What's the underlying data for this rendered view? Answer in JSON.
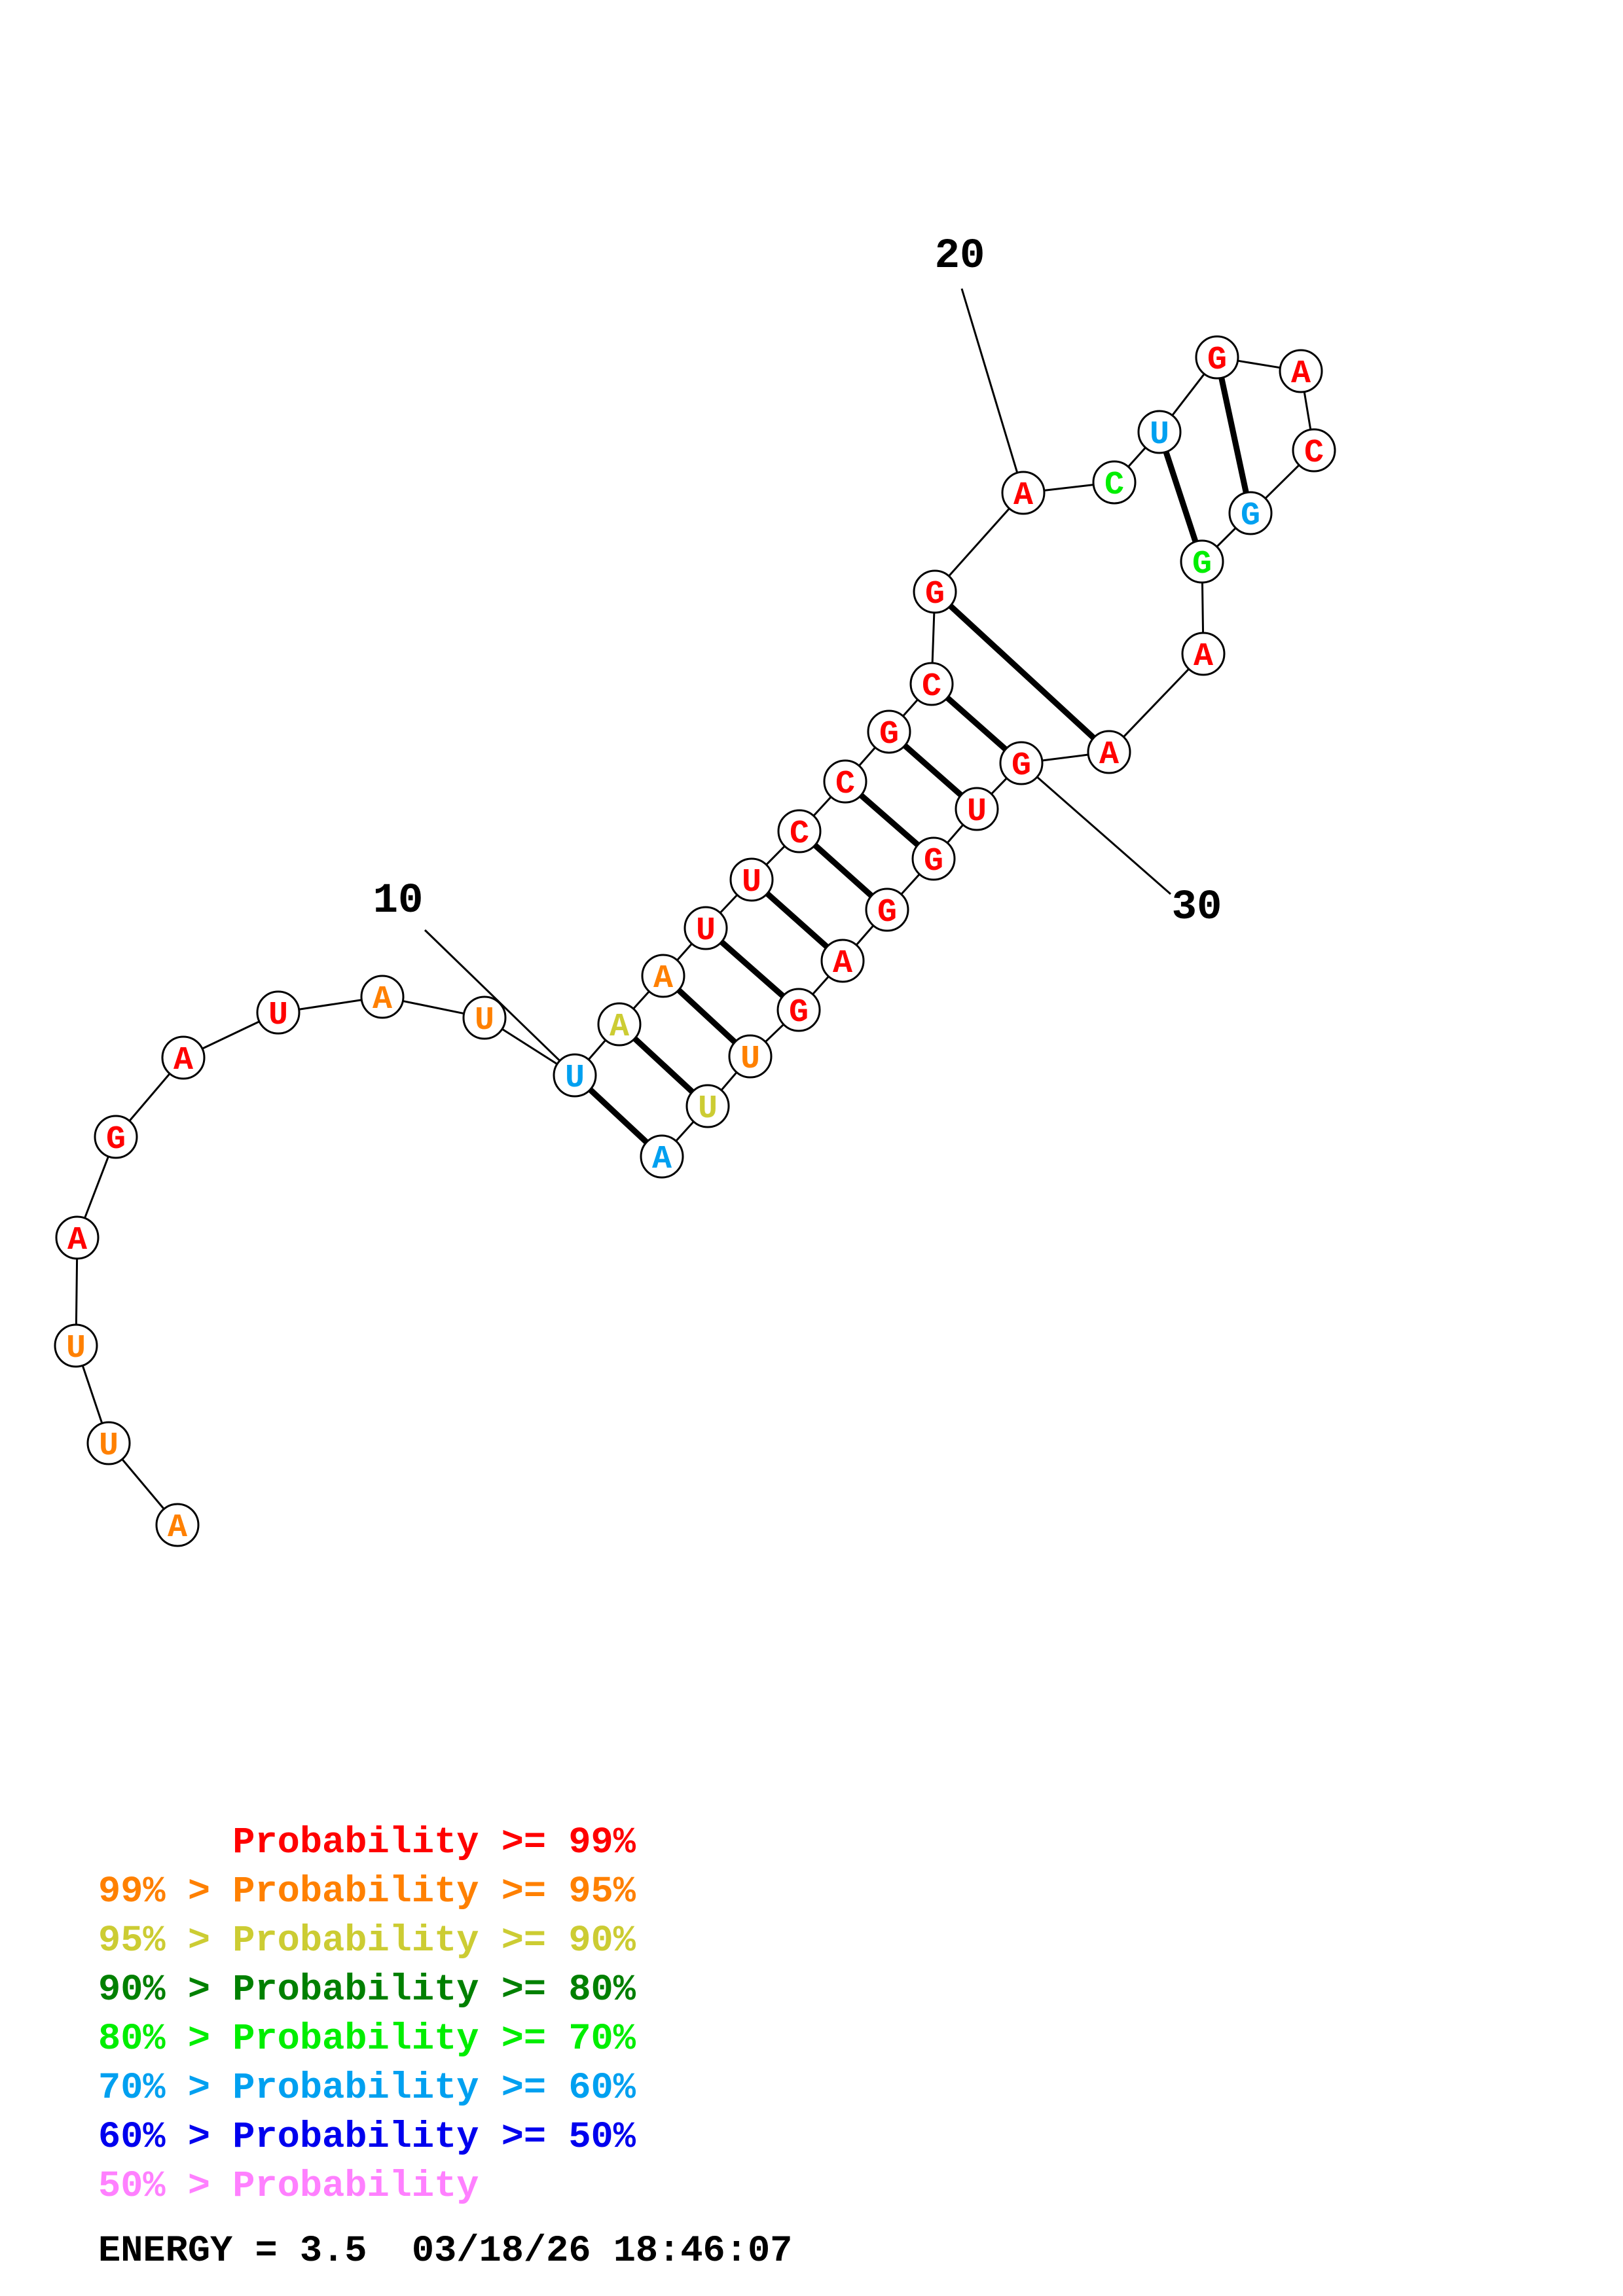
{
  "structure": {
    "sequence": [
      "A",
      "U",
      "U",
      "A",
      "G",
      "A",
      "U",
      "A",
      "U",
      "U",
      "A",
      "A",
      "U",
      "U",
      "C",
      "C",
      "G",
      "C",
      "G",
      "A",
      "C",
      "U",
      "G",
      "A",
      "C",
      "G",
      "G",
      "A",
      "A",
      "G",
      "U",
      "G",
      "G",
      "A",
      "G",
      "U",
      "U",
      "A"
    ],
    "levels": [
      1,
      1,
      1,
      0,
      0,
      0,
      0,
      1,
      1,
      5,
      2,
      1,
      0,
      0,
      0,
      0,
      0,
      0,
      0,
      0,
      4,
      5,
      0,
      0,
      0,
      5,
      4,
      0,
      0,
      0,
      0,
      0,
      0,
      0,
      0,
      1,
      2,
      5
    ],
    "pairs": [
      [
        10,
        38
      ],
      [
        11,
        37
      ],
      [
        12,
        36
      ],
      [
        13,
        35
      ],
      [
        14,
        34
      ],
      [
        15,
        33
      ],
      [
        16,
        32
      ],
      [
        17,
        31
      ],
      [
        18,
        30
      ],
      [
        19,
        29
      ],
      [
        22,
        27
      ],
      [
        23,
        26
      ]
    ],
    "index_labels": [
      {
        "text": "10",
        "base": 10
      },
      {
        "text": "20",
        "base": 20
      },
      {
        "text": "30",
        "base": 30
      }
    ]
  },
  "legend": {
    "colors": [
      "#ff0000",
      "#ff8000",
      "#cccc33",
      "#008000",
      "#00ee00",
      "#00a0f0",
      "#0000ee",
      "#ff80ff"
    ],
    "rows": [
      {
        "prefix": "    ",
        "text": "Probability >= 99%"
      },
      {
        "prefix": "99% > ",
        "text": "Probability >= 95%"
      },
      {
        "prefix": "95% > ",
        "text": "Probability >= 90%"
      },
      {
        "prefix": "90% > ",
        "text": "Probability >= 80%"
      },
      {
        "prefix": "80% > ",
        "text": "Probability >= 70%"
      },
      {
        "prefix": "70% > ",
        "text": "Probability >= 60%"
      },
      {
        "prefix": "60% > ",
        "text": "Probability >= 50%"
      },
      {
        "prefix": "50% > ",
        "text": "Probability"
      }
    ]
  },
  "footer": {
    "energy": "ENERGY = 3.5",
    "timestamp": "03/18/26 18:46:07"
  }
}
